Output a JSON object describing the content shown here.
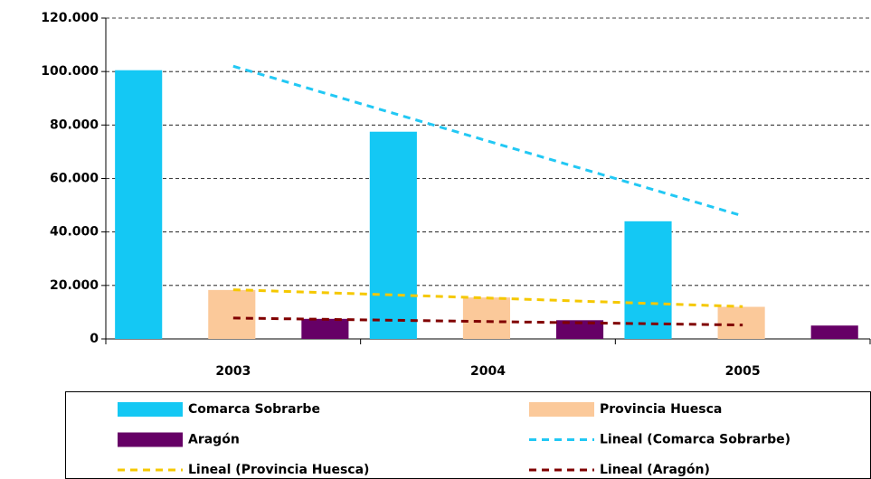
{
  "chart_data": {
    "type": "bar",
    "categories": [
      "2003",
      "2004",
      "2005"
    ],
    "series": [
      {
        "name": "Comarca Sobrarbe",
        "type": "bar",
        "color": "#14c8f4",
        "values": [
          100500,
          77500,
          44000
        ]
      },
      {
        "name": "Provincia Huesca",
        "type": "bar",
        "color": "#fbc99a",
        "values": [
          18300,
          15500,
          12000
        ]
      },
      {
        "name": "Aragón",
        "type": "bar",
        "color": "#660066",
        "values": [
          7500,
          7000,
          5000
        ]
      },
      {
        "name": "Lineal (Comarca Sobrarbe)",
        "type": "line",
        "color": "#22c8f4",
        "values": [
          102000,
          74000,
          46000
        ]
      },
      {
        "name": "Lineal (Provincia Huesca)",
        "type": "line",
        "color": "#f5c800",
        "values": [
          18400,
          15300,
          12100
        ]
      },
      {
        "name": "Lineal (Aragón)",
        "type": "line",
        "color": "#800000",
        "values": [
          7800,
          6500,
          5200
        ]
      }
    ],
    "ylim": [
      0,
      120000
    ],
    "yticks": [
      0,
      {
        "value": 20000,
        "label": "20.000"
      },
      {
        "value": 40000,
        "label": "40.000"
      },
      {
        "value": 60000,
        "label": "60.000"
      },
      {
        "value": 80000,
        "label": "80.000"
      },
      {
        "value": 100000,
        "label": "100.000"
      },
      {
        "value": 120000,
        "label": "120.000"
      }
    ],
    "grid": true
  }
}
